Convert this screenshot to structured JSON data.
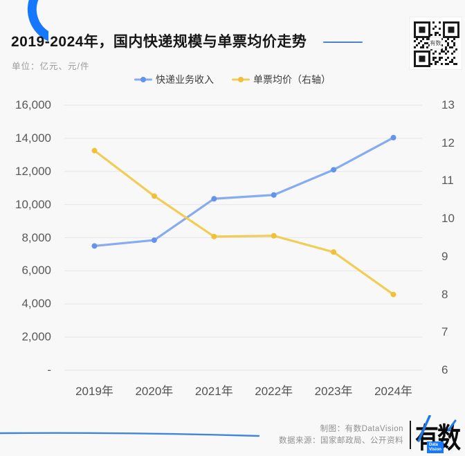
{
  "header": {
    "title": "2019-2024年，国内快递规模与单票均价走势",
    "unit_label": "单位：亿元、元/件",
    "qr_center_label": "有数"
  },
  "legend": {
    "items": [
      {
        "label": "快递业务收入",
        "line_color": "#86abf1",
        "dot_color": "#6493ee"
      },
      {
        "label": "单票均价（右轴）",
        "line_color": "#f2cd55",
        "dot_color": "#efc139"
      }
    ]
  },
  "chart_data": {
    "type": "line",
    "title": "2019-2024年，国内快递规模与单票均价走势",
    "categories": [
      "2019年",
      "2020年",
      "2021年",
      "2022年",
      "2023年",
      "2024年"
    ],
    "series": [
      {
        "name": "快递业务收入",
        "axis": "left",
        "color": "#86abf1",
        "dot_color": "#6493ee",
        "values": [
          7500,
          7850,
          10350,
          10580,
          12100,
          14040
        ]
      },
      {
        "name": "单票均价（右轴）",
        "axis": "right",
        "color": "#f2cd55",
        "dot_color": "#efc139",
        "values": [
          11.8,
          10.6,
          9.53,
          9.55,
          9.12,
          8.0
        ]
      }
    ],
    "left_axis": {
      "ticks": [
        "16,000",
        "14,000",
        "12,000",
        "10,000",
        "8,000",
        "6,000",
        "4,000",
        "2,000",
        "-"
      ],
      "min": 0,
      "max": 16000
    },
    "right_axis": {
      "ticks": [
        "13",
        "12",
        "11",
        "10",
        "9",
        "8",
        "7",
        "6"
      ],
      "min": 6,
      "max": 13
    },
    "grid": true,
    "legend_position": "top"
  },
  "footer": {
    "credit": "制图：有数DataVision",
    "source": "数据来源：国家邮政局、公开资料",
    "logo_text": "有数",
    "logo_sub_line1": "Data",
    "logo_sub_line2": "Vision"
  },
  "colors": {
    "accent_blue": "#1677ff",
    "title_dash": "#4d82c4",
    "grid_line": "#e6e6e8",
    "background": "#f8f8f9",
    "swoosh": "#3f86d8"
  }
}
